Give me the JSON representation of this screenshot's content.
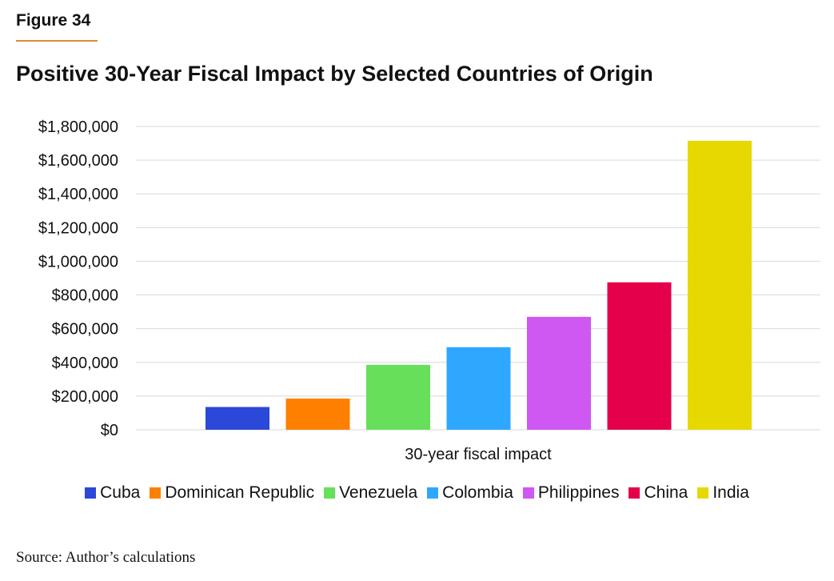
{
  "figure_label": "Figure 34",
  "source": "Source: Author’s calculations",
  "chart_data": {
    "type": "bar",
    "title": "Positive 30-Year Fiscal Impact by Selected Countries of Origin",
    "xlabel": "30-year fiscal impact",
    "ylabel": "",
    "ylim": [
      0,
      1800000
    ],
    "yticks": [
      {
        "value": 0,
        "label": "$0"
      },
      {
        "value": 200000,
        "label": "$200,000"
      },
      {
        "value": 400000,
        "label": "$400,000"
      },
      {
        "value": 600000,
        "label": "$600,000"
      },
      {
        "value": 800000,
        "label": "$800,000"
      },
      {
        "value": 1000000,
        "label": "$1,000,000"
      },
      {
        "value": 1200000,
        "label": "$1,200,000"
      },
      {
        "value": 1400000,
        "label": "$1,400,000"
      },
      {
        "value": 1600000,
        "label": "$1,600,000"
      },
      {
        "value": 1800000,
        "label": "$1,800,000"
      }
    ],
    "grid": true,
    "legend_position": "bottom",
    "series": [
      {
        "name": "Cuba",
        "value": 135000,
        "color": "#2b48d8"
      },
      {
        "name": "Dominican Republic",
        "value": 185000,
        "color": "#ff8000"
      },
      {
        "name": "Venezuela",
        "value": 385000,
        "color": "#66e05a"
      },
      {
        "name": "Colombia",
        "value": 490000,
        "color": "#2ea8ff"
      },
      {
        "name": "Philippines",
        "value": 670000,
        "color": "#cf57f2"
      },
      {
        "name": "China",
        "value": 875000,
        "color": "#e4004b"
      },
      {
        "name": "India",
        "value": 1715000,
        "color": "#e6d800"
      }
    ]
  }
}
